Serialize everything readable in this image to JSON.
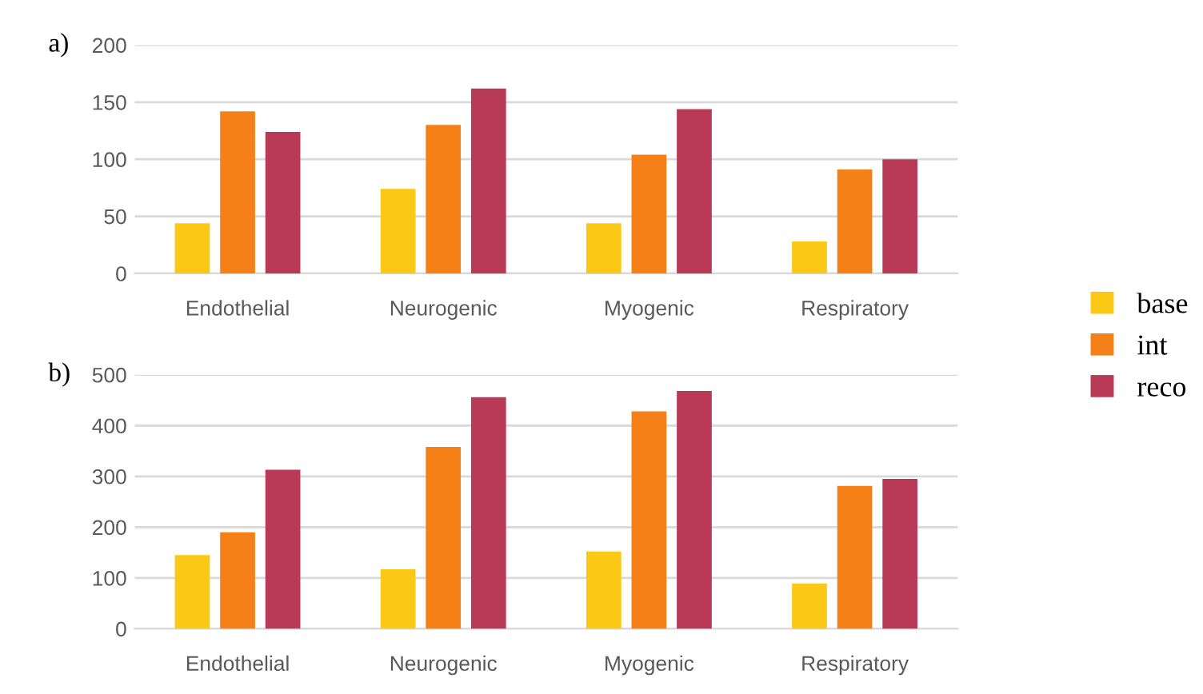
{
  "chart_data": [
    {
      "type": "bar",
      "title": "a)",
      "categories": [
        "Endothelial",
        "Neurogenic",
        "Myogenic",
        "Respiratory"
      ],
      "series": [
        {
          "name": "base",
          "color": "#fcc816",
          "values": [
            44,
            74,
            44,
            28
          ]
        },
        {
          "name": "int",
          "color": "#f58018",
          "values": [
            142,
            130,
            104,
            91
          ]
        },
        {
          "name": "reco",
          "color": "#b93a57",
          "values": [
            124,
            162,
            144,
            100
          ]
        }
      ],
      "ylim": [
        0,
        200
      ],
      "yticks": [
        0,
        50,
        100,
        150,
        200
      ],
      "grid": "y",
      "legend": "right"
    },
    {
      "type": "bar",
      "title": "b)",
      "categories": [
        "Endothelial",
        "Neurogenic",
        "Myogenic",
        "Respiratory"
      ],
      "series": [
        {
          "color": "#fcc816",
          "values": [
            145,
            117,
            152,
            89
          ]
        },
        {
          "color": "#f58018",
          "values": [
            190,
            358,
            428,
            281
          ]
        },
        {
          "color": "#b93a57",
          "values": [
            313,
            456,
            468,
            295
          ]
        }
      ],
      "ylim": [
        0,
        500
      ],
      "yticks": [
        0,
        100,
        200,
        300,
        400,
        500
      ],
      "grid": "y"
    }
  ]
}
